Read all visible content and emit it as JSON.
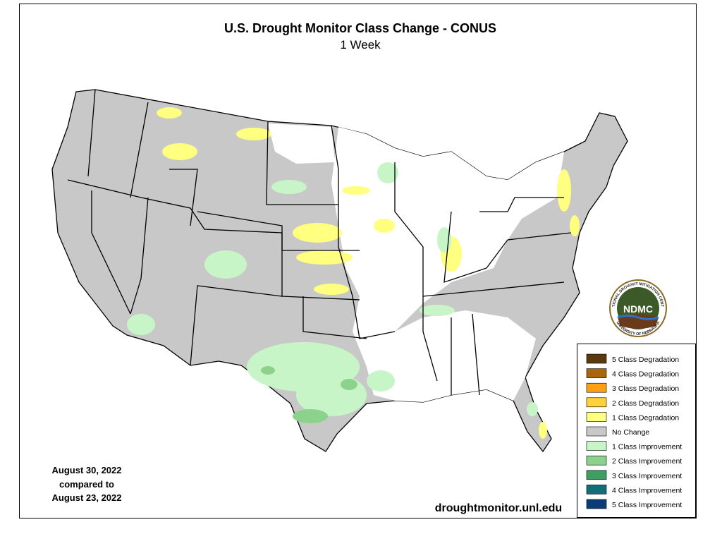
{
  "header": {
    "title": "U.S. Drought Monitor Class Change - CONUS",
    "subtitle": "1 Week"
  },
  "legend": {
    "items": [
      {
        "label": "5 Class Degradation",
        "color": "#5a3a0c"
      },
      {
        "label": "4 Class Degradation",
        "color": "#a8680a"
      },
      {
        "label": "3 Class Degradation",
        "color": "#ffa010"
      },
      {
        "label": "2 Class Degradation",
        "color": "#ffd23c"
      },
      {
        "label": "1 Class Degradation",
        "color": "#ffff80"
      },
      {
        "label": "No Change",
        "color": "#c8c8c8"
      },
      {
        "label": "1 Class Improvement",
        "color": "#c8f5c8"
      },
      {
        "label": "2 Class Improvement",
        "color": "#8cd28c"
      },
      {
        "label": "3 Class Improvement",
        "color": "#3ca064"
      },
      {
        "label": "4 Class Improvement",
        "color": "#0f6e78"
      },
      {
        "label": "5 Class Improvement",
        "color": "#0a3c78"
      }
    ]
  },
  "date_note": {
    "lines": [
      "August 30, 2022",
      "compared to",
      "August 23, 2022"
    ]
  },
  "source_url": "droughtmonitor.unl.edu",
  "logo": {
    "text": "NDMC",
    "ring_top": "NATIONAL DROUGHT MITIGATION CENTER",
    "ring_bottom": "UNIVERSITY OF NEBRASKA"
  }
}
